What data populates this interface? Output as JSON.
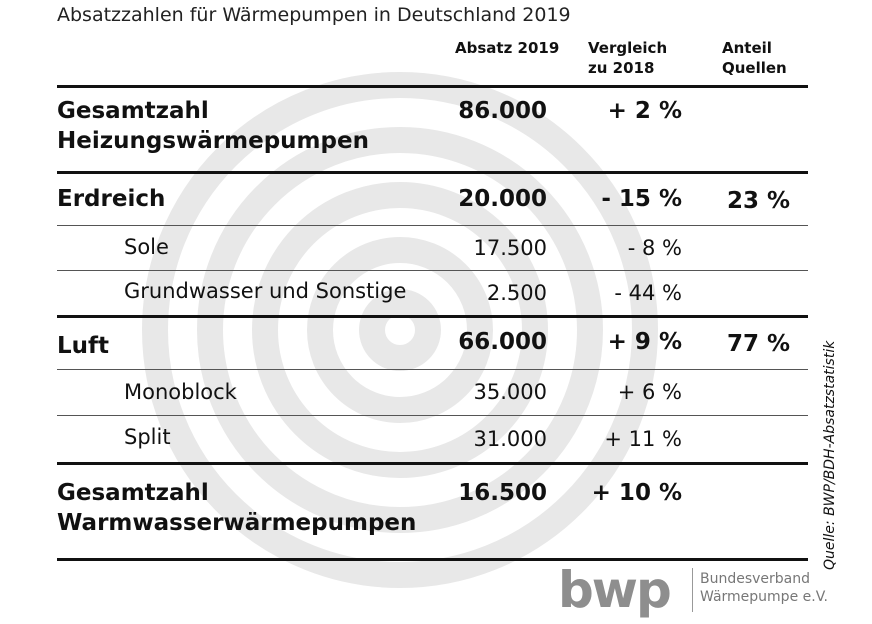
{
  "title": "Absatzzahlen für Wärmepumpen in Deutschland 2019",
  "headers": {
    "absatz": "Absatz 2019",
    "vergleich_1": "Vergleich",
    "vergleich_2": "zu 2018",
    "anteil_1": "Anteil",
    "anteil_2": "Quellen"
  },
  "rows": [
    {
      "label_1": "Gesamtzahl",
      "label_2": "Heizungswärmepumpen",
      "absatz": "86.000",
      "vergleich": "+ 2 %",
      "anteil": ""
    },
    {
      "label_1": "Erdreich",
      "absatz": "20.000",
      "vergleich": "- 15 %",
      "anteil": "23 %"
    },
    {
      "label_1": "Sole",
      "absatz": "17.500",
      "vergleich": "- 8 %"
    },
    {
      "label_1": "Grundwasser und Sonstige",
      "absatz": "2.500",
      "vergleich": "- 44 %"
    },
    {
      "label_1": "Luft",
      "absatz": "66.000",
      "vergleich": "+ 9 %",
      "anteil": "77 %"
    },
    {
      "label_1": "Monoblock",
      "absatz": "35.000",
      "vergleich": "+ 6 %"
    },
    {
      "label_1": "Split",
      "absatz": "31.000",
      "vergleich": "+ 11 %"
    },
    {
      "label_1": "Gesamtzahl",
      "label_2": "Warmwasserwärmepumpen",
      "absatz": "16.500",
      "vergleich": "+ 10 %"
    }
  ],
  "source": "Quelle: BWP/BDH-Absatzstatistik",
  "logo": {
    "mark": "bwp",
    "line_1": "Bundesverband",
    "line_2": "Wärmepumpe e.V."
  },
  "colors": {
    "watermark": "#e6e6e6",
    "logo": "#8e8e8e"
  }
}
